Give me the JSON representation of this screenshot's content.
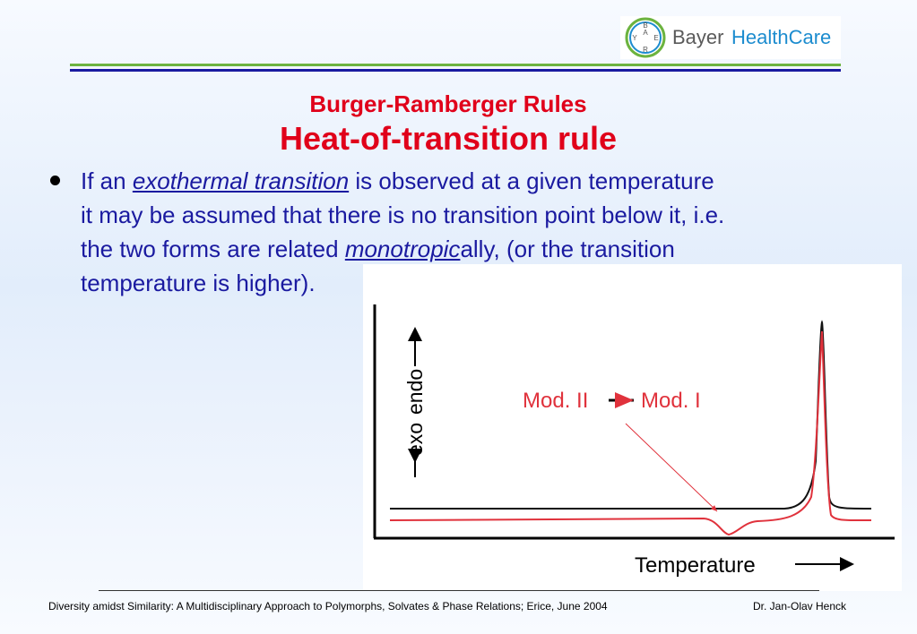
{
  "logo": {
    "cross": [
      "B",
      "A",
      "Y",
      "E",
      "R"
    ],
    "brand": "Bayer",
    "division": "HealthCare"
  },
  "header": {
    "title": "Burger-Ramberger Rules",
    "subtitle": "Heat-of-transition rule"
  },
  "bullet": {
    "lines": [
      [
        "If an ",
        "exothermal transition",
        " is observed at a given temperature"
      ],
      [
        "it may be assumed that there is no transition point below it, i.e."
      ],
      [
        "the two forms are related ",
        "monotropic",
        "ally, (or the transition"
      ],
      [
        "temperature is higher)."
      ]
    ]
  },
  "figure": {
    "y_label_low": "exo",
    "y_label_high": "endo",
    "annotation_from": "Mod. II",
    "annotation_to": "Mod. I",
    "x_label": "Temperature"
  },
  "footer": {
    "event": "Diversity amidst Similarity: A Multidisciplinary Approach to Polymorphs, Solvates & Phase Relations; Erice, June 2004",
    "author": "Dr. Jan-Olav Henck"
  }
}
